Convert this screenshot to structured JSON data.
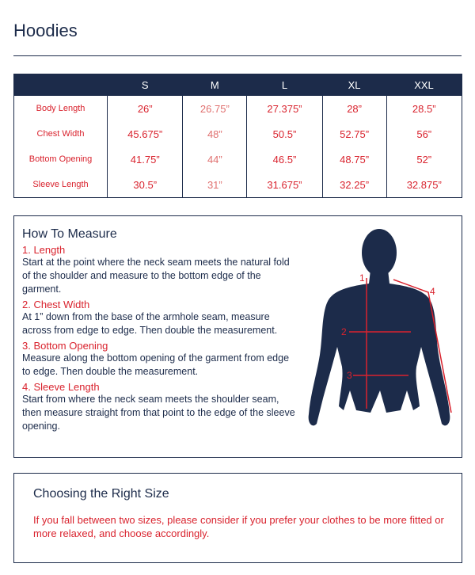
{
  "title": "Hoodies",
  "table": {
    "header": [
      "S",
      "M",
      "L",
      "XL",
      "XXL"
    ],
    "rows": [
      {
        "label": "Body Length",
        "values": [
          "26”",
          "26.75”",
          "27.375”",
          "28”",
          "28.5”"
        ]
      },
      {
        "label": "Chest Width",
        "values": [
          "45.675”",
          "48”",
          "50.5”",
          "52.75”",
          "56”"
        ]
      },
      {
        "label": "Bottom Opening",
        "values": [
          "41.75”",
          "44”",
          "46.5”",
          "48.75”",
          "52”"
        ]
      },
      {
        "label": "Sleeve Length",
        "values": [
          "30.5”",
          "31”",
          "31.675”",
          "32.25”",
          "32.875”"
        ]
      }
    ]
  },
  "measure": {
    "title": "How To Measure",
    "items": [
      {
        "heading": "1. Length",
        "text": "Start at the point where the neck seam meets the natural fold of the shoulder and measure to the bottom edge of the garment."
      },
      {
        "heading": "2. Chest Width",
        "text": "At 1” down from the base of the armhole seam, measure across from edge to edge. Then double the measurement."
      },
      {
        "heading": "3. Bottom Opening",
        "text": "Measure along the bottom opening of the garment from edge to edge. Then double the measurement."
      },
      {
        "heading": "4. Sleeve Length",
        "text": "Start from where the neck seam meets the shoulder seam, then measure straight from that point to the edge of the sleeve opening."
      }
    ],
    "figure_labels": [
      "1",
      "2",
      "3",
      "4"
    ]
  },
  "choosing": {
    "title": "Choosing the Right Size",
    "text": "If you fall between two sizes, please consider if you prefer your clothes to be more fitted or more relaxed, and choose accordingly."
  }
}
